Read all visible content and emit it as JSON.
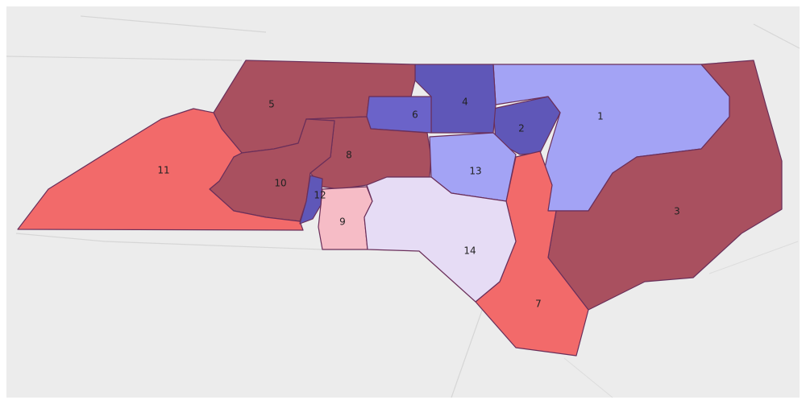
{
  "districts": [
    {
      "label": "1",
      "color": "#a3a3f5"
    },
    {
      "label": "2",
      "color": "#5f57b8"
    },
    {
      "label": "3",
      "color": "#a9505f"
    },
    {
      "label": "4",
      "color": "#5f57b8"
    },
    {
      "label": "5",
      "color": "#a9505f"
    },
    {
      "label": "6",
      "color": "#6b63c9"
    },
    {
      "label": "7",
      "color": "#f26a6a"
    },
    {
      "label": "8",
      "color": "#a9505f"
    },
    {
      "label": "9",
      "color": "#f6bcc6"
    },
    {
      "label": "10",
      "color": "#a9505f"
    },
    {
      "label": "11",
      "color": "#f26a6a"
    },
    {
      "label": "12",
      "color": "#5f57b8"
    },
    {
      "label": "13",
      "color": "#a3a3f5"
    },
    {
      "label": "14",
      "color": "#e6dcf5"
    }
  ]
}
